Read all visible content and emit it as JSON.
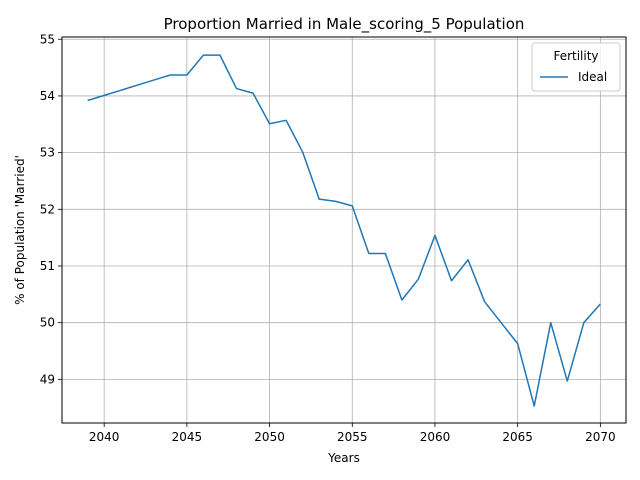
{
  "chart_data": {
    "type": "line",
    "title": "Proportion Married in Male_scoring_5 Population",
    "xlabel": "Years",
    "ylabel": "% of Population 'Married'",
    "xlim": [
      2037.45,
      2071.55
    ],
    "ylim": [
      48.23,
      55.04
    ],
    "xticks": [
      2040,
      2045,
      2050,
      2055,
      2060,
      2065,
      2070
    ],
    "yticks": [
      49,
      50,
      51,
      52,
      53,
      54,
      55
    ],
    "grid": true,
    "legend": {
      "title": "Fertility",
      "position": "top-right"
    },
    "colors": {
      "series": "#1f77b4",
      "grid": "#b0b0b0"
    },
    "series": [
      {
        "name": "Ideal",
        "x": [
          2039,
          2040,
          2041,
          2042,
          2043,
          2044,
          2045,
          2046,
          2047,
          2048,
          2049,
          2050,
          2051,
          2052,
          2053,
          2054,
          2055,
          2056,
          2057,
          2058,
          2059,
          2060,
          2061,
          2062,
          2063,
          2064,
          2065,
          2066,
          2067,
          2068,
          2069,
          2070
        ],
        "y": [
          53.92,
          54.01,
          54.1,
          54.19,
          54.28,
          54.37,
          54.37,
          54.72,
          54.72,
          54.13,
          54.05,
          53.51,
          53.57,
          53.01,
          52.18,
          52.14,
          52.06,
          51.22,
          51.22,
          50.4,
          50.77,
          51.54,
          50.74,
          51.11,
          50.37,
          50.0,
          49.63,
          48.53,
          50.0,
          48.97,
          50.0,
          50.33
        ]
      }
    ]
  }
}
